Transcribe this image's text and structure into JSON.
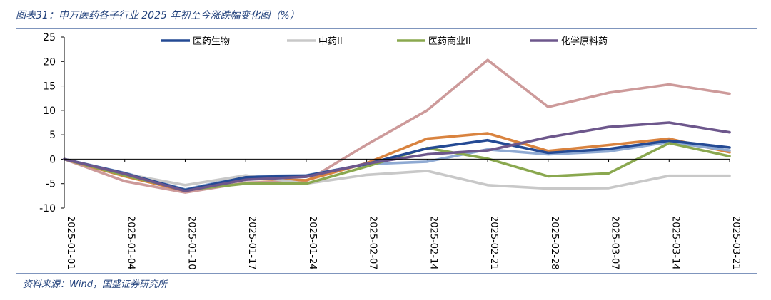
{
  "header": {
    "title": "图表31：申万医药各子行业 2025 年初至今涨跌幅变化图（%）"
  },
  "footer": {
    "source": "资料来源：Wind，国盛证券研究所"
  },
  "chart_data": {
    "type": "line",
    "title": "图表31：申万医药各子行业 2025 年初至今涨跌幅变化图（%）",
    "xlabel": "",
    "ylabel": "",
    "ylim": [
      -10,
      25
    ],
    "yticks": [
      -10,
      -5,
      0,
      5,
      10,
      15,
      20,
      25
    ],
    "grid": false,
    "legend_position": "top",
    "categories": [
      "2025-01-01",
      "2025-01-04",
      "2025-01-10",
      "2025-01-17",
      "2025-01-24",
      "2025-02-07",
      "2025-02-14",
      "2025-02-21",
      "2025-02-28",
      "2025-03-07",
      "2025-03-14",
      "2025-03-21"
    ],
    "series": [
      {
        "name": "",
        "color": "#cd9a9a",
        "width": 3.6,
        "in_legend": false,
        "values": [
          0,
          -4.5,
          -6.8,
          -4.8,
          -4.5,
          3.0,
          10.0,
          20.3,
          10.7,
          13.6,
          15.3,
          13.4
        ]
      },
      {
        "name": "",
        "color": "#d9833f",
        "width": 3.6,
        "in_legend": false,
        "values": [
          0,
          -3.5,
          -6.5,
          -4.0,
          -4.3,
          -0.8,
          4.2,
          5.3,
          1.7,
          2.9,
          4.2,
          1.4
        ]
      },
      {
        "name": "",
        "color": "#8faad3",
        "width": 3.6,
        "in_legend": false,
        "values": [
          0,
          -2.8,
          -6.2,
          -3.5,
          -3.3,
          -1.0,
          -0.5,
          2.0,
          1.0,
          1.6,
          3.5,
          1.8
        ]
      },
      {
        "name": "中药II",
        "color": "#c8c8c8",
        "width": 3.6,
        "in_legend": true,
        "values": [
          0,
          -3.0,
          -5.3,
          -3.3,
          -5.0,
          -3.2,
          -2.4,
          -5.3,
          -6.0,
          -5.9,
          -3.4,
          -3.4
        ]
      },
      {
        "name": "医药商业II",
        "color": "#8aa84f",
        "width": 3.6,
        "in_legend": true,
        "values": [
          0,
          -3.3,
          -6.3,
          -5.0,
          -5.0,
          -1.5,
          2.3,
          0.1,
          -3.5,
          -2.9,
          3.3,
          0.6
        ]
      },
      {
        "name": "医药生物",
        "color": "#244a94",
        "width": 3.6,
        "in_legend": true,
        "values": [
          0,
          -2.9,
          -6.3,
          -3.7,
          -3.4,
          -1.0,
          2.2,
          3.9,
          1.3,
          2.1,
          3.8,
          2.4
        ]
      },
      {
        "name": "化学原料药",
        "color": "#6d578c",
        "width": 3.6,
        "in_legend": true,
        "values": [
          0,
          -3.0,
          -6.5,
          -4.2,
          -3.6,
          -0.9,
          1.0,
          1.8,
          4.5,
          6.6,
          7.5,
          5.5
        ]
      }
    ],
    "legend": [
      "医药生物",
      "中药II",
      "医药商业II",
      "化学原料药"
    ]
  }
}
